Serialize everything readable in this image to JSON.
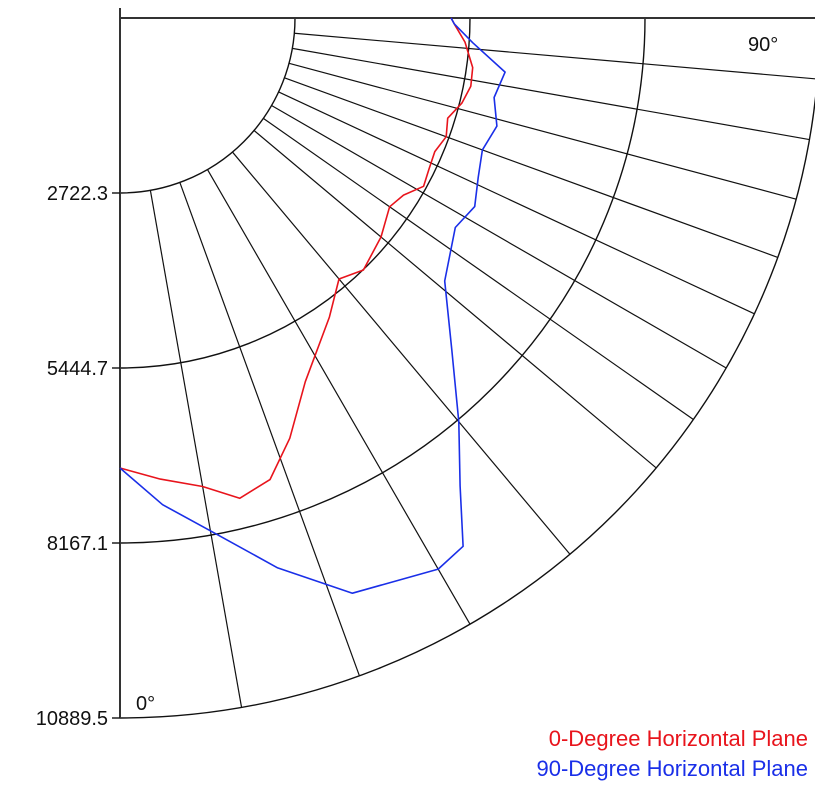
{
  "chart_data": {
    "type": "line",
    "subtype": "polar-quadrant",
    "radial_axis": {
      "min": 0,
      "max": 10889.5,
      "tick_labels": [
        "2722.3",
        "5444.7",
        "8167.1",
        "10889.5"
      ],
      "ticks": [
        2722.3,
        5444.7,
        8167.1,
        10889.5
      ]
    },
    "angle_axis": {
      "labels": [
        "0°",
        "90°"
      ],
      "range_deg": [
        0,
        90
      ],
      "spoke_angles_deg": [
        0,
        10,
        20,
        30,
        40,
        50,
        55,
        60,
        65,
        70,
        75,
        80,
        85,
        90
      ]
    },
    "grid": true,
    "legend_position": "bottom-right",
    "series": [
      {
        "name": "0-Degree Horizontal Plane",
        "color": "#e8141c",
        "points": [
          {
            "angle": 0,
            "value": 7000
          },
          {
            "angle": 5,
            "value": 7200
          },
          {
            "angle": 10,
            "value": 7400
          },
          {
            "angle": 14,
            "value": 7700
          },
          {
            "angle": 18,
            "value": 7550
          },
          {
            "angle": 22,
            "value": 7050
          },
          {
            "angle": 27,
            "value": 6350
          },
          {
            "angle": 35,
            "value": 5680
          },
          {
            "angle": 40,
            "value": 5300
          },
          {
            "angle": 44,
            "value": 5450
          },
          {
            "angle": 50,
            "value": 5300
          },
          {
            "angle": 55,
            "value": 5120
          },
          {
            "angle": 58,
            "value": 5200
          },
          {
            "angle": 61,
            "value": 5400
          },
          {
            "angle": 64,
            "value": 5350
          },
          {
            "angle": 67,
            "value": 5320
          },
          {
            "angle": 70,
            "value": 5400
          },
          {
            "angle": 73,
            "value": 5330
          },
          {
            "angle": 76,
            "value": 5480
          },
          {
            "angle": 79,
            "value": 5560
          },
          {
            "angle": 82,
            "value": 5540
          },
          {
            "angle": 86,
            "value": 5380
          },
          {
            "angle": 89,
            "value": 5200
          },
          {
            "angle": 90,
            "value": 5150
          }
        ]
      },
      {
        "name": "90-Degree Horizontal Plane",
        "color": "#1a2fe8",
        "points": [
          {
            "angle": 0,
            "value": 7000
          },
          {
            "angle": 5,
            "value": 7600
          },
          {
            "angle": 10,
            "value": 8100
          },
          {
            "angle": 16,
            "value": 8900
          },
          {
            "angle": 22,
            "value": 9650
          },
          {
            "angle": 30,
            "value": 9900
          },
          {
            "angle": 33,
            "value": 9800
          },
          {
            "angle": 36,
            "value": 9000
          },
          {
            "angle": 40,
            "value": 8200
          },
          {
            "angle": 45,
            "value": 7300
          },
          {
            "angle": 51,
            "value": 6500
          },
          {
            "angle": 58,
            "value": 6150
          },
          {
            "angle": 62,
            "value": 6250
          },
          {
            "angle": 66,
            "value": 6100
          },
          {
            "angle": 70,
            "value": 6000
          },
          {
            "angle": 74,
            "value": 6100
          },
          {
            "angle": 78,
            "value": 5950
          },
          {
            "angle": 82,
            "value": 6050
          },
          {
            "angle": 86,
            "value": 5500
          },
          {
            "angle": 89,
            "value": 5200
          },
          {
            "angle": 90,
            "value": 5150
          }
        ]
      }
    ]
  }
}
